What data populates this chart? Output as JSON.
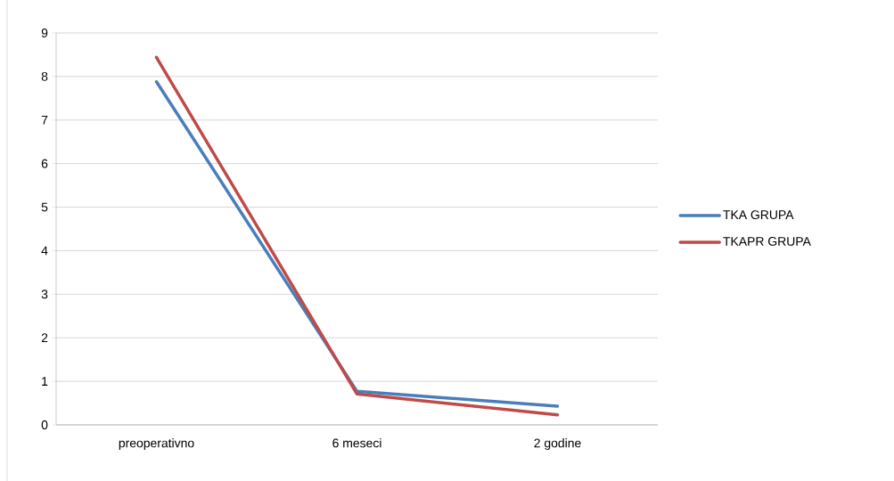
{
  "chart_data": {
    "type": "line",
    "categories": [
      "preoperativno",
      "6 meseci",
      "2 godine"
    ],
    "series": [
      {
        "name": "TKA GRUPA",
        "color": "#4a7ebb",
        "values": [
          7.88,
          0.77,
          0.43
        ]
      },
      {
        "name": "TKAPR GRUPA",
        "color": "#be4b48",
        "values": [
          8.44,
          0.71,
          0.23
        ]
      }
    ],
    "ylim": [
      0,
      9
    ],
    "yticks": [
      0,
      1,
      2,
      3,
      4,
      5,
      6,
      7,
      8,
      9
    ],
    "grid": "y",
    "legend": "right",
    "marker": "none",
    "line_style": "solid"
  }
}
